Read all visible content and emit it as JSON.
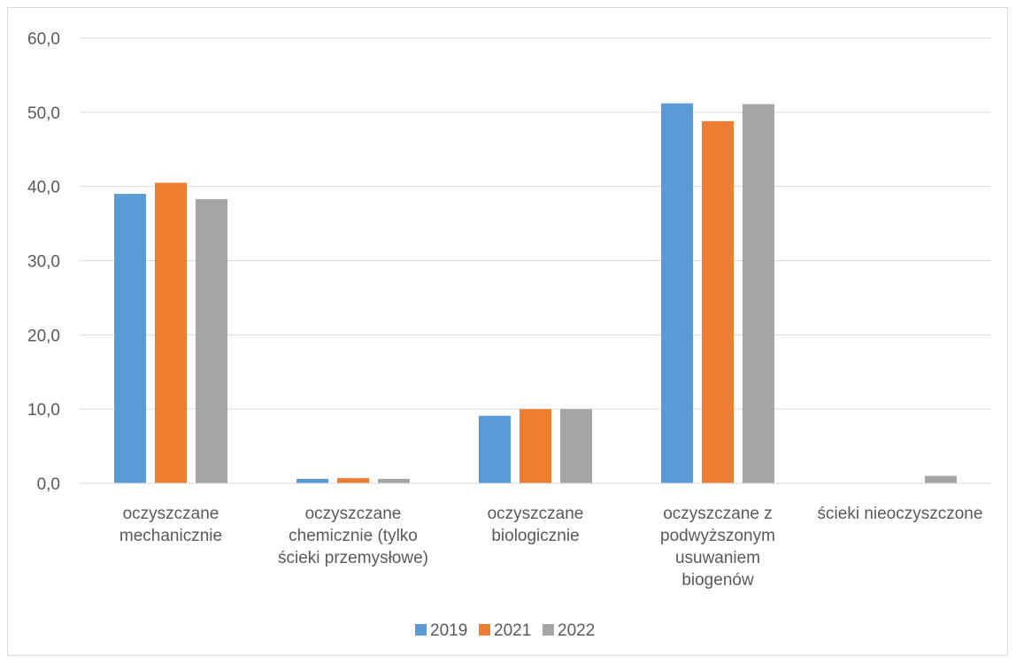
{
  "chart_data": {
    "type": "bar",
    "title": "",
    "xlabel": "",
    "ylabel": "",
    "ylim": [
      0,
      60
    ],
    "y_ticks": [
      "0,0",
      "10,0",
      "20,0",
      "30,0",
      "40,0",
      "50,0",
      "60,0"
    ],
    "y_tick_values": [
      0,
      10,
      20,
      30,
      40,
      50,
      60
    ],
    "grid": true,
    "legend_position": "bottom",
    "categories": [
      [
        "oczyszczane",
        "mechanicznie"
      ],
      [
        "oczyszczane",
        "chemicznie (tylko",
        "ścieki przemysłowe)"
      ],
      [
        "oczyszczane",
        "biologicznie"
      ],
      [
        "oczyszczane z",
        "podwyższonym",
        "usuwaniem",
        "biogenów"
      ],
      [
        "ścieki nieoczyszczone"
      ]
    ],
    "series": [
      {
        "name": "2019",
        "color": "#5b9bd5",
        "values": [
          39.0,
          0.6,
          9.1,
          51.2,
          0.0
        ]
      },
      {
        "name": "2021",
        "color": "#ed7d31",
        "values": [
          40.5,
          0.7,
          10.0,
          48.8,
          0.0
        ]
      },
      {
        "name": "2022",
        "color": "#a5a5a5",
        "values": [
          38.3,
          0.6,
          10.0,
          51.1,
          1.0
        ]
      }
    ]
  }
}
